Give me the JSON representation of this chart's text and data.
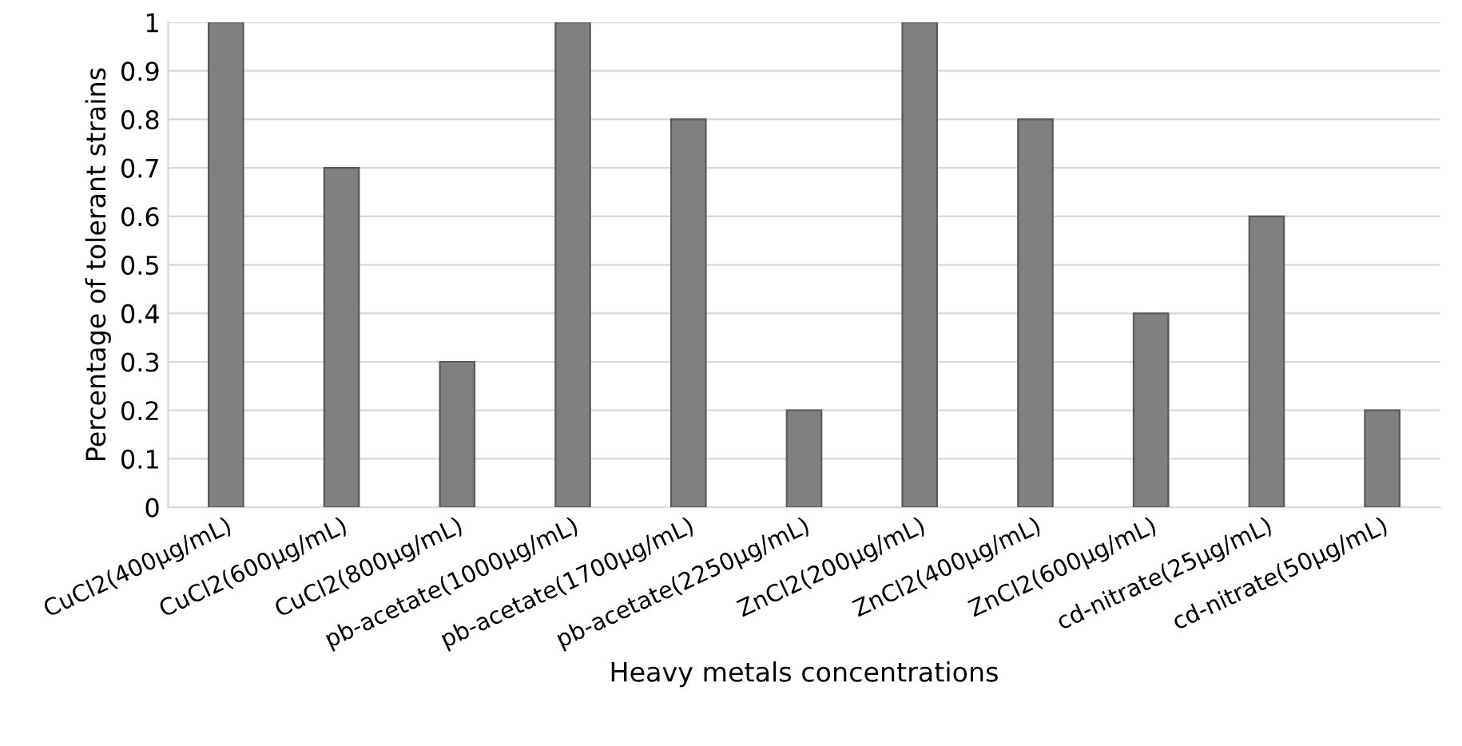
{
  "chart_data": {
    "type": "bar",
    "xlabel": "Heavy metals concentrations",
    "ylabel": "Percentage of tolerant strains",
    "categories": [
      "CuCl2(400µg/mL)",
      "CuCl2(600µg/mL)",
      "CuCl2(800µg/mL)",
      "pb-acetate(1000µg/mL)",
      "pb-acetate(1700µg/mL)",
      "pb-acetate(2250µg/mL)",
      "ZnCl2(200µg/mL)",
      "ZnCl2(400µg/mL)",
      "ZnCl2(600µg/mL)",
      "cd-nitrate(25µg/mL)",
      "cd-nitrate(50µg/mL)"
    ],
    "values": [
      1,
      0.7,
      0.3,
      1,
      0.8,
      0.2,
      1,
      0.8,
      0.4,
      0.6,
      0.2
    ],
    "color": "#808080",
    "ylim": [
      0,
      1
    ],
    "yticks": [
      0,
      0.1,
      0.2,
      0.3,
      0.4,
      0.5,
      0.6,
      0.7,
      0.8,
      0.9,
      1
    ],
    "grid": "y",
    "legend": false
  }
}
